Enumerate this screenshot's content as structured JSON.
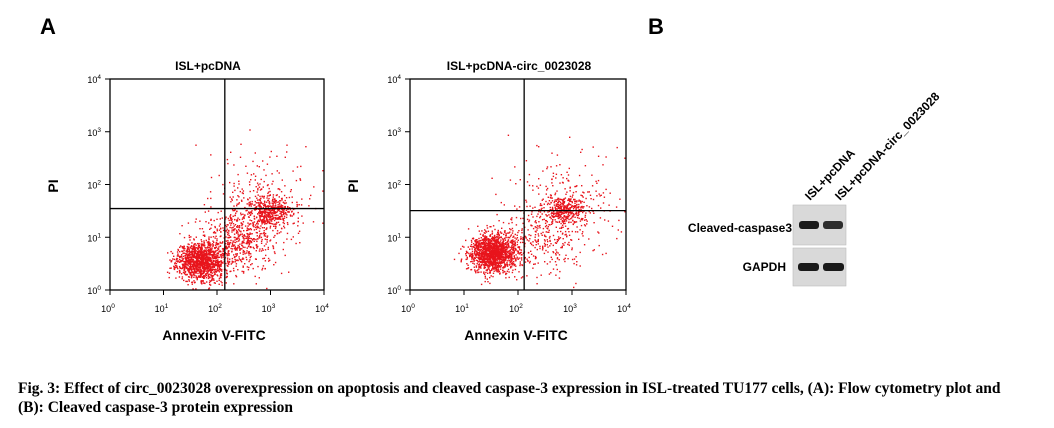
{
  "panel_labels": {
    "a": "A",
    "b": "B"
  },
  "caption": "Fig. 3: Effect of circ_0023028 overexpression on apoptosis and cleaved caspase-3 expression in ISL-treated TU177 cells, (A): Flow cytometry plot and (B): Cleaved caspase-3 protein expression",
  "chart_data": [
    {
      "type": "scatter",
      "title": "ISL+pcDNA",
      "xlabel": "Annexin V-FITC",
      "ylabel": "PI",
      "x_scale": "log",
      "y_scale": "log",
      "xlim": [
        1,
        10000
      ],
      "ylim": [
        1,
        10000
      ],
      "x_ticks": [
        {
          "base": "10",
          "exp": "0"
        },
        {
          "base": "10",
          "exp": "1"
        },
        {
          "base": "10",
          "exp": "2"
        },
        {
          "base": "10",
          "exp": "3"
        },
        {
          "base": "10",
          "exp": "4"
        }
      ],
      "y_ticks": [
        {
          "base": "10",
          "exp": "0"
        },
        {
          "base": "10",
          "exp": "1"
        },
        {
          "base": "10",
          "exp": "2"
        },
        {
          "base": "10",
          "exp": "3"
        },
        {
          "base": "10",
          "exp": "4"
        }
      ],
      "quadrant_gate": {
        "x": 140,
        "y": 35
      },
      "point_color": "#e8141c",
      "populations": [
        {
          "center": [
            50,
            3.5
          ],
          "spread_log10": [
            0.22,
            0.18
          ],
          "count": 1300
        },
        {
          "center": [
            1000,
            30
          ],
          "spread_log10": [
            0.22,
            0.16
          ],
          "count": 450
        },
        {
          "center": [
            250,
            8
          ],
          "spread_log10": [
            0.35,
            0.3
          ],
          "count": 500
        },
        {
          "center": [
            600,
            40
          ],
          "spread_log10": [
            0.5,
            0.5
          ],
          "count": 250
        }
      ]
    },
    {
      "type": "scatter",
      "title": "ISL+pcDNA-circ_0023028",
      "xlabel": "Annexin V-FITC",
      "ylabel": "PI",
      "x_scale": "log",
      "y_scale": "log",
      "xlim": [
        1,
        10000
      ],
      "ylim": [
        1,
        10000
      ],
      "x_ticks": [
        {
          "base": "10",
          "exp": "0"
        },
        {
          "base": "10",
          "exp": "1"
        },
        {
          "base": "10",
          "exp": "2"
        },
        {
          "base": "10",
          "exp": "3"
        },
        {
          "base": "10",
          "exp": "4"
        }
      ],
      "y_ticks": [
        {
          "base": "10",
          "exp": "0"
        },
        {
          "base": "10",
          "exp": "1"
        },
        {
          "base": "10",
          "exp": "2"
        },
        {
          "base": "10",
          "exp": "3"
        },
        {
          "base": "10",
          "exp": "4"
        }
      ],
      "quadrant_gate": {
        "x": 130,
        "y": 32
      },
      "point_color": "#e8141c",
      "populations": [
        {
          "center": [
            35,
            5
          ],
          "spread_log10": [
            0.22,
            0.18
          ],
          "count": 1500
        },
        {
          "center": [
            750,
            35
          ],
          "spread_log10": [
            0.2,
            0.15
          ],
          "count": 320
        },
        {
          "center": [
            300,
            10
          ],
          "spread_log10": [
            0.4,
            0.35
          ],
          "count": 300
        },
        {
          "center": [
            700,
            40
          ],
          "spread_log10": [
            0.5,
            0.5
          ],
          "count": 200
        }
      ]
    }
  ],
  "western_blot": {
    "lanes": [
      "ISL+pcDNA",
      "ISL+pcDNA-circ_0023028"
    ],
    "rows": [
      {
        "label": "Cleaved-caspase3",
        "band_intensity": [
          1.0,
          0.85
        ]
      },
      {
        "label": "GAPDH",
        "band_intensity": [
          1.0,
          1.0
        ]
      }
    ]
  }
}
